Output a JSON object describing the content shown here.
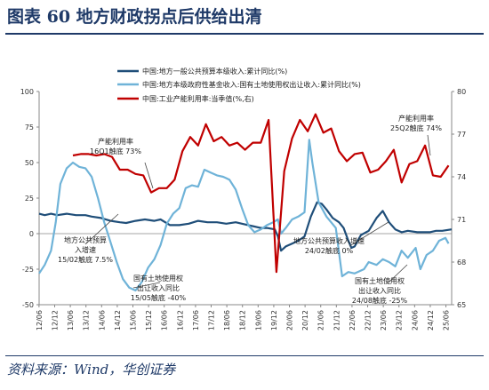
{
  "figure": {
    "title": "图表 60    地方财政拐点后供给出清",
    "source": "资料来源：Wind，华创证券"
  },
  "chart_data": {
    "type": "line",
    "x_tick_labels": [
      "12/06",
      "12/12",
      "13/06",
      "13/12",
      "14/06",
      "14/12",
      "15/06",
      "15/12",
      "16/06",
      "16/12",
      "17/06",
      "17/12",
      "18/06",
      "18/12",
      "19/06",
      "19/12",
      "20/06",
      "20/12",
      "21/06",
      "21/12",
      "22/06",
      "22/12",
      "23/06",
      "23/12",
      "24/06",
      "24/12",
      "25/06"
    ],
    "y_left": {
      "ticks": [
        -50,
        -25,
        0,
        25,
        50,
        75,
        100
      ],
      "ylim": [
        -50,
        100
      ]
    },
    "y_right": {
      "ticks": [
        65,
        68,
        71,
        74,
        77,
        80
      ],
      "ylim": [
        65,
        80
      ]
    },
    "series": [
      {
        "name": "中国:地方一般公共预算本级收入:累计同比(%)",
        "axis": "left",
        "color": "#1f4e79",
        "points": [
          [
            2012.42,
            14
          ],
          [
            2012.6,
            13
          ],
          [
            2012.8,
            14
          ],
          [
            2013.0,
            13
          ],
          [
            2013.3,
            14
          ],
          [
            2013.6,
            13
          ],
          [
            2013.9,
            13
          ],
          [
            2014.1,
            12
          ],
          [
            2014.4,
            11
          ],
          [
            2014.7,
            9
          ],
          [
            2015.0,
            8
          ],
          [
            2015.2,
            7.5
          ],
          [
            2015.5,
            9
          ],
          [
            2015.8,
            10
          ],
          [
            2016.1,
            9
          ],
          [
            2016.3,
            10
          ],
          [
            2016.6,
            6
          ],
          [
            2016.9,
            6
          ],
          [
            2017.2,
            7
          ],
          [
            2017.5,
            9
          ],
          [
            2017.8,
            8
          ],
          [
            2018.1,
            8
          ],
          [
            2018.4,
            7
          ],
          [
            2018.7,
            8
          ],
          [
            2018.9,
            7
          ],
          [
            2019.1,
            6
          ],
          [
            2019.3,
            5
          ],
          [
            2019.5,
            4
          ],
          [
            2019.7,
            4
          ],
          [
            2019.95,
            3
          ],
          [
            2020.05,
            -2
          ],
          [
            2020.15,
            -12
          ],
          [
            2020.3,
            -9
          ],
          [
            2020.5,
            -7
          ],
          [
            2020.7,
            -5
          ],
          [
            2020.9,
            -2
          ],
          [
            2021.1,
            12
          ],
          [
            2021.3,
            22
          ],
          [
            2021.45,
            21
          ],
          [
            2021.6,
            17
          ],
          [
            2021.8,
            11
          ],
          [
            2022.0,
            8
          ],
          [
            2022.15,
            4
          ],
          [
            2022.3,
            -5
          ],
          [
            2022.4,
            -10
          ],
          [
            2022.5,
            -9
          ],
          [
            2022.7,
            -1
          ],
          [
            2022.95,
            2
          ],
          [
            2023.2,
            11
          ],
          [
            2023.4,
            16
          ],
          [
            2023.6,
            8
          ],
          [
            2023.8,
            3
          ],
          [
            2024.0,
            1
          ],
          [
            2024.2,
            2
          ],
          [
            2024.5,
            1
          ],
          [
            2024.7,
            1
          ],
          [
            2024.9,
            1
          ],
          [
            2025.1,
            2
          ],
          [
            2025.3,
            2
          ],
          [
            2025.6,
            3
          ]
        ]
      },
      {
        "name": "中国:地方本级政府性基金收入:国有土地使用权出让收入:累计同比(%)",
        "axis": "left",
        "color": "#6fb3d8",
        "points": [
          [
            2012.42,
            -28
          ],
          [
            2012.6,
            -22
          ],
          [
            2012.8,
            -12
          ],
          [
            2012.95,
            8
          ],
          [
            2013.1,
            35
          ],
          [
            2013.3,
            46
          ],
          [
            2013.5,
            50
          ],
          [
            2013.7,
            47
          ],
          [
            2013.9,
            46
          ],
          [
            2014.1,
            40
          ],
          [
            2014.3,
            25
          ],
          [
            2014.5,
            8
          ],
          [
            2014.7,
            -6
          ],
          [
            2014.9,
            -20
          ],
          [
            2015.1,
            -32
          ],
          [
            2015.3,
            -38
          ],
          [
            2015.5,
            -40
          ],
          [
            2015.7,
            -34
          ],
          [
            2015.9,
            -24
          ],
          [
            2016.1,
            -18
          ],
          [
            2016.3,
            -8
          ],
          [
            2016.5,
            7
          ],
          [
            2016.7,
            14
          ],
          [
            2016.9,
            18
          ],
          [
            2017.1,
            32
          ],
          [
            2017.3,
            34
          ],
          [
            2017.5,
            33
          ],
          [
            2017.7,
            45
          ],
          [
            2017.9,
            43
          ],
          [
            2018.1,
            41
          ],
          [
            2018.3,
            40
          ],
          [
            2018.5,
            38
          ],
          [
            2018.7,
            31
          ],
          [
            2018.9,
            18
          ],
          [
            2019.1,
            6
          ],
          [
            2019.3,
            1
          ],
          [
            2019.5,
            3
          ],
          [
            2019.7,
            6
          ],
          [
            2019.9,
            8
          ],
          [
            2020.05,
            10
          ],
          [
            2020.15,
            0
          ],
          [
            2020.3,
            4
          ],
          [
            2020.5,
            10
          ],
          [
            2020.7,
            12
          ],
          [
            2020.9,
            15
          ],
          [
            2021.05,
            66
          ],
          [
            2021.15,
            50
          ],
          [
            2021.35,
            22
          ],
          [
            2021.6,
            12
          ],
          [
            2021.9,
            4
          ],
          [
            2022.1,
            -30
          ],
          [
            2022.3,
            -27
          ],
          [
            2022.5,
            -28
          ],
          [
            2022.8,
            -25
          ],
          [
            2022.95,
            -20
          ],
          [
            2023.2,
            -22
          ],
          [
            2023.4,
            -18
          ],
          [
            2023.6,
            -20
          ],
          [
            2023.8,
            -23
          ],
          [
            2024.0,
            -12
          ],
          [
            2024.2,
            -17
          ],
          [
            2024.45,
            -10
          ],
          [
            2024.6,
            -25
          ],
          [
            2024.8,
            -15
          ],
          [
            2025.0,
            -12
          ],
          [
            2025.2,
            -5
          ],
          [
            2025.4,
            -3
          ],
          [
            2025.5,
            -7
          ]
        ]
      },
      {
        "name": "中国:工业产能利用率:当季值(%,右)",
        "axis": "right",
        "color": "#c00000",
        "points": [
          [
            2013.5,
            75.5
          ],
          [
            2013.75,
            75.6
          ],
          [
            2014.0,
            75.6
          ],
          [
            2014.25,
            75.5
          ],
          [
            2014.5,
            75.6
          ],
          [
            2014.75,
            75.4
          ],
          [
            2015.0,
            74.5
          ],
          [
            2015.25,
            74.5
          ],
          [
            2015.5,
            74.2
          ],
          [
            2015.75,
            74.1
          ],
          [
            2016.0,
            72.9
          ],
          [
            2016.25,
            73.2
          ],
          [
            2016.5,
            73.2
          ],
          [
            2016.75,
            73.8
          ],
          [
            2017.0,
            75.8
          ],
          [
            2017.25,
            76.8
          ],
          [
            2017.5,
            76.2
          ],
          [
            2017.75,
            77.7
          ],
          [
            2018.0,
            76.5
          ],
          [
            2018.25,
            76.8
          ],
          [
            2018.5,
            76.2
          ],
          [
            2018.75,
            76.4
          ],
          [
            2019.0,
            75.9
          ],
          [
            2019.25,
            76.4
          ],
          [
            2019.5,
            76.4
          ],
          [
            2019.75,
            78.0
          ],
          [
            2020.0,
            67.3
          ],
          [
            2020.25,
            74.4
          ],
          [
            2020.5,
            76.7
          ],
          [
            2020.75,
            78.0
          ],
          [
            2021.0,
            77.2
          ],
          [
            2021.25,
            78.4
          ],
          [
            2021.5,
            77.1
          ],
          [
            2021.75,
            77.4
          ],
          [
            2022.0,
            75.8
          ],
          [
            2022.25,
            75.1
          ],
          [
            2022.5,
            75.6
          ],
          [
            2022.75,
            75.7
          ],
          [
            2023.0,
            74.3
          ],
          [
            2023.25,
            74.5
          ],
          [
            2023.5,
            75.1
          ],
          [
            2023.75,
            75.9
          ],
          [
            2024.0,
            73.6
          ],
          [
            2024.25,
            74.9
          ],
          [
            2024.5,
            75.1
          ],
          [
            2024.75,
            76.2
          ],
          [
            2025.0,
            74.1
          ],
          [
            2025.25,
            74.0
          ],
          [
            2025.5,
            74.8
          ]
        ]
      }
    ],
    "legend_position": "top",
    "annotations": [
      {
        "lines": [
          "产能利用率",
          "16Q1触底 73%"
        ],
        "x": 2016.0,
        "y_right": 72.9
      },
      {
        "lines": [
          "产能利用率",
          "25Q2触底 74%"
        ],
        "x": 2025.25,
        "y_right": 74.0
      },
      {
        "lines": [
          "地方公共预算",
          "入增速",
          "15/02触底 7.5%"
        ],
        "x": 2015.15,
        "y_left": 7.5
      },
      {
        "lines": [
          "国有土地使用权",
          "出让收入同比",
          "15/05触底 -40%"
        ],
        "x": 2015.35,
        "y_left": -40
      },
      {
        "lines": [
          "地方公共预算收入增速",
          "24/02触底 0%"
        ],
        "x": 2024.1,
        "y_left": 0
      },
      {
        "lines": [
          "国有土地使用权",
          "出让收入同比",
          "24/08触底 -25%"
        ],
        "x": 2024.6,
        "y_left": -25
      }
    ]
  }
}
